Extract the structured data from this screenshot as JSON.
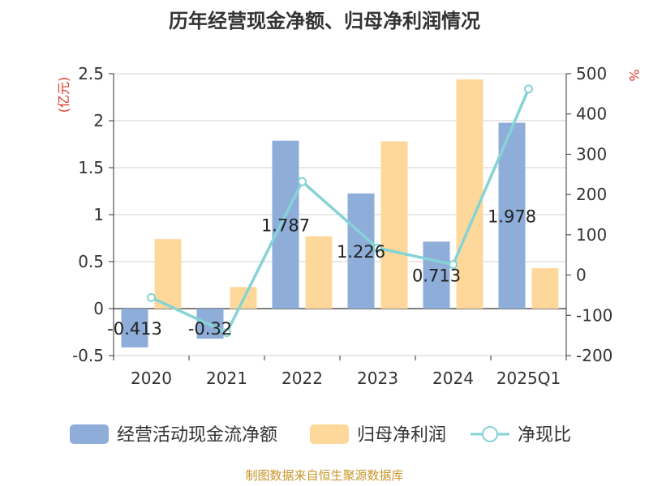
{
  "title": "历年经营现金净额、归母净利润情况",
  "source": "制图数据来自恒生聚源数据库",
  "colors": {
    "cash_flow": "#8eadd9",
    "net_profit": "#fdd89a",
    "ratio": "#86d3d6",
    "axis_label": "#e0352a",
    "grid": "#d0d0d0",
    "axis": "#333333"
  },
  "chart_data": {
    "type": "bar",
    "title": "历年经营现金净额、归母净利润情况",
    "categories": [
      "2020",
      "2021",
      "2022",
      "2023",
      "2024",
      "2025Q1"
    ],
    "y_left": {
      "unit": "(亿元)",
      "min": -0.5,
      "max": 2.5,
      "ticks": [
        -0.5,
        0,
        0.5,
        1,
        1.5,
        2,
        2.5
      ],
      "tick_labels": [
        "-0.5",
        "0",
        "0.5",
        "1",
        "1.5",
        "2",
        "2.5"
      ]
    },
    "y_right": {
      "unit": "%",
      "min": -200,
      "max": 500,
      "ticks": [
        -200,
        -100,
        0,
        100,
        200,
        300,
        400,
        500
      ],
      "tick_labels": [
        "-200",
        "-100",
        "0",
        "100",
        "200",
        "300",
        "400",
        "500"
      ]
    },
    "grid": true,
    "legend_position": "bottom",
    "series": [
      {
        "name": "经营活动现金流净额",
        "type": "bar",
        "axis": "left",
        "values": [
          -0.413,
          -0.32,
          1.787,
          1.226,
          0.713,
          1.978
        ],
        "labels": [
          "-0.413",
          "-0.32",
          "1.787",
          "1.226",
          "0.713",
          "1.978"
        ]
      },
      {
        "name": "归母净利润",
        "type": "bar",
        "axis": "left",
        "values": [
          0.74,
          0.23,
          0.77,
          1.78,
          2.44,
          0.43
        ]
      },
      {
        "name": "净现比",
        "type": "line",
        "axis": "right",
        "values": [
          -56,
          -143,
          232,
          67,
          26,
          462
        ]
      }
    ]
  }
}
